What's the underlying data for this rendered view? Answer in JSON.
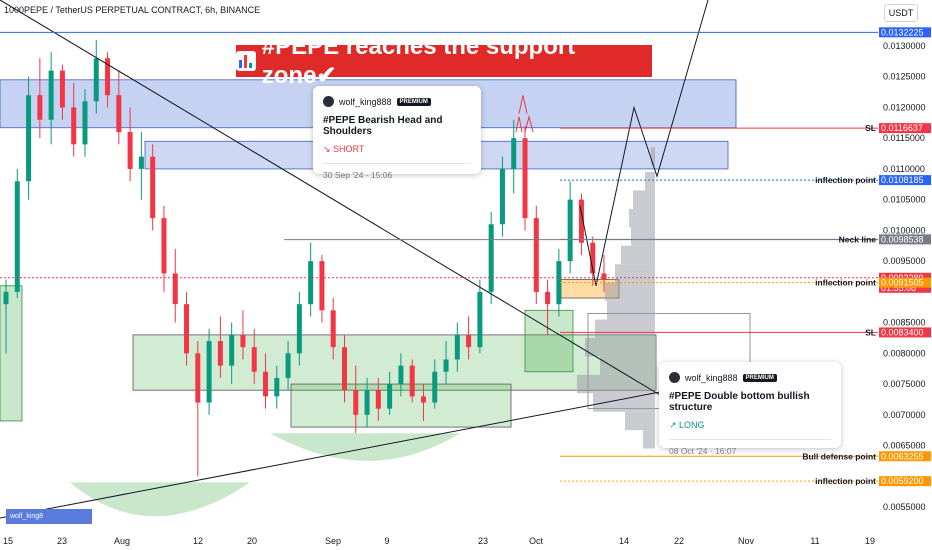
{
  "header": {
    "symbol": "1000PEPE / TetherUS PERPETUAL CONTRACT, 6h, BINANCE"
  },
  "currency_button": {
    "label": "USDT"
  },
  "banner": {
    "text": "#PEPE reaches the support zone✔"
  },
  "ideas": [
    {
      "user": "wolf_king888",
      "badge": "PREMIUM",
      "title": "#PEPE Bearish Head and Shoulders",
      "direction": "↘ SHORT",
      "date": "30 Sep '24 · 15:06",
      "direction_color": "#f23645"
    },
    {
      "user": "wolf_king888",
      "badge": "PREMIUM",
      "title": "#PEPE Double bottom bullish structure",
      "direction": "↗ LONG",
      "date": "08 Oct '24 · 16:07",
      "direction_color": "#089981"
    }
  ],
  "watermark": {
    "text": "wolf_king8"
  },
  "chart_data": {
    "type": "candlestick",
    "x_ticks": [
      "15",
      "23",
      "Aug",
      "12",
      "20",
      "Sep",
      "9",
      "23",
      "Oct",
      "14",
      "22",
      "Nov",
      "11",
      "19"
    ],
    "y_ticks": [
      "0.0130000",
      "0.0125000",
      "0.0120000",
      "0.0115000",
      "0.0110000",
      "0.0105000",
      "0.0100000",
      "0.0095000",
      "0.0085000",
      "0.0080000",
      "0.0075000",
      "0.0070000",
      "0.0065000",
      "0.0055000"
    ],
    "ylim": [
      0.0052,
      0.014
    ],
    "levels": [
      {
        "name": "",
        "price": 0.0132225,
        "label": "0.0132225",
        "color": "#2962ff",
        "style": "solid"
      },
      {
        "name": "SL",
        "price": 0.0116637,
        "label": "0.0116637",
        "color": "#f23645",
        "style": "solid"
      },
      {
        "name": "inflection point",
        "price": 0.0108185,
        "label": "0.0108185",
        "color": "#2962ff",
        "style": "dotted"
      },
      {
        "name": "Neck line",
        "price": 0.0098538,
        "label": "0.0098538",
        "color": "#787b86",
        "style": "solid"
      },
      {
        "name": "",
        "price": 0.0092289,
        "label": "0.0092289",
        "label2": "01:55:08",
        "color": "#f23645",
        "style": "dotted"
      },
      {
        "name": "inflection point",
        "price": 0.0091505,
        "label": "0.0091505",
        "color": "#ff9800",
        "style": "dotted"
      },
      {
        "name": "SL",
        "price": 0.00834,
        "label": "0.0083400",
        "color": "#f23645",
        "style": "solid"
      },
      {
        "name": "Bull defense point",
        "price": 0.0063255,
        "label": "0.0063255",
        "color": "#ff9800",
        "style": "solid"
      },
      {
        "name": "inflection point",
        "price": 0.00592,
        "label": "0.0059200",
        "color": "#ff9800",
        "style": "dotted"
      }
    ],
    "candles": [
      [
        0.0088,
        0.0092,
        0.008,
        0.009
      ],
      [
        0.009,
        0.011,
        0.0089,
        0.0108
      ],
      [
        0.0108,
        0.0125,
        0.0105,
        0.0122
      ],
      [
        0.0122,
        0.0128,
        0.0115,
        0.0118
      ],
      [
        0.0118,
        0.0129,
        0.0114,
        0.0126
      ],
      [
        0.0126,
        0.0127,
        0.0118,
        0.012
      ],
      [
        0.012,
        0.0124,
        0.0112,
        0.0114
      ],
      [
        0.0114,
        0.0123,
        0.0112,
        0.0121
      ],
      [
        0.0121,
        0.0131,
        0.0119,
        0.0128
      ],
      [
        0.0128,
        0.0129,
        0.012,
        0.0122
      ],
      [
        0.0122,
        0.0126,
        0.0114,
        0.0116
      ],
      [
        0.0116,
        0.012,
        0.0108,
        0.011
      ],
      [
        0.011,
        0.0116,
        0.0105,
        0.0112
      ],
      [
        0.0112,
        0.0114,
        0.01,
        0.0102
      ],
      [
        0.0102,
        0.0104,
        0.009,
        0.0093
      ],
      [
        0.0093,
        0.0097,
        0.0085,
        0.0088
      ],
      [
        0.0088,
        0.009,
        0.0078,
        0.008
      ],
      [
        0.008,
        0.0082,
        0.006,
        0.0072
      ],
      [
        0.0072,
        0.0084,
        0.007,
        0.0082
      ],
      [
        0.0082,
        0.0086,
        0.0076,
        0.0078
      ],
      [
        0.0078,
        0.0085,
        0.0075,
        0.0083
      ],
      [
        0.0083,
        0.0087,
        0.0079,
        0.0081
      ],
      [
        0.0081,
        0.0084,
        0.0075,
        0.0077
      ],
      [
        0.0077,
        0.008,
        0.0071,
        0.0073
      ],
      [
        0.0073,
        0.0078,
        0.0071,
        0.0076
      ],
      [
        0.0076,
        0.0082,
        0.0074,
        0.008
      ],
      [
        0.008,
        0.009,
        0.0078,
        0.0088
      ],
      [
        0.0088,
        0.0098,
        0.0086,
        0.0095
      ],
      [
        0.0095,
        0.0096,
        0.0085,
        0.0087
      ],
      [
        0.0087,
        0.0089,
        0.0079,
        0.0081
      ],
      [
        0.0081,
        0.0083,
        0.0072,
        0.0074
      ],
      [
        0.0074,
        0.0078,
        0.0067,
        0.007
      ],
      [
        0.007,
        0.0076,
        0.0068,
        0.0074
      ],
      [
        0.0074,
        0.0076,
        0.0069,
        0.0071
      ],
      [
        0.0071,
        0.0077,
        0.007,
        0.0075
      ],
      [
        0.0075,
        0.008,
        0.0073,
        0.0078
      ],
      [
        0.0078,
        0.0079,
        0.0072,
        0.0073
      ],
      [
        0.0073,
        0.0075,
        0.0069,
        0.0072
      ],
      [
        0.0072,
        0.0079,
        0.0071,
        0.0077
      ],
      [
        0.0077,
        0.0082,
        0.0075,
        0.0079
      ],
      [
        0.0079,
        0.0085,
        0.0077,
        0.0083
      ],
      [
        0.0083,
        0.0086,
        0.0079,
        0.0081
      ],
      [
        0.0081,
        0.0092,
        0.008,
        0.009
      ],
      [
        0.009,
        0.0103,
        0.0088,
        0.0101
      ],
      [
        0.0101,
        0.0112,
        0.0099,
        0.011
      ],
      [
        0.011,
        0.0118,
        0.0106,
        0.0115
      ],
      [
        0.0115,
        0.0117,
        0.01,
        0.0102
      ],
      [
        0.0102,
        0.0104,
        0.0088,
        0.009
      ],
      [
        0.009,
        0.0092,
        0.0083,
        0.0088
      ],
      [
        0.0088,
        0.0097,
        0.0086,
        0.0095
      ],
      [
        0.0095,
        0.0108,
        0.0093,
        0.0105
      ],
      [
        0.0105,
        0.0106,
        0.0096,
        0.0098
      ],
      [
        0.0098,
        0.0099,
        0.0091,
        0.0093
      ],
      [
        0.0093,
        0.0096,
        0.009,
        0.0092
      ]
    ]
  }
}
